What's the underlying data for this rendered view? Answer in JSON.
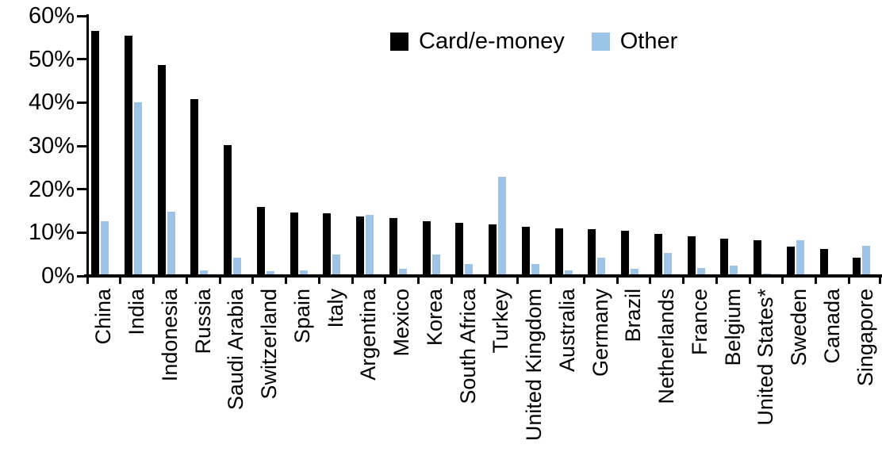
{
  "background_color": "#FFFFFF",
  "chart_data": {
    "type": "bar",
    "title": "",
    "xlabel": "",
    "ylabel": "",
    "ylim": [
      0,
      60
    ],
    "ytick_labels": [
      "0%",
      "10%",
      "20%",
      "30%",
      "40%",
      "50%",
      "60%"
    ],
    "grid": false,
    "legend_position": "top-center",
    "categories": [
      "China",
      "India",
      "Indonesia",
      "Russia",
      "Saudi Arabia",
      "Switzerland",
      "Spain",
      "Italy",
      "Argentina",
      "Mexico",
      "Korea",
      "South Africa",
      "Turkey",
      "United Kingdom",
      "Australia",
      "Germany",
      "Brazil",
      "Netherlands",
      "France",
      "Belgium",
      "United States*",
      "Sweden",
      "Canada",
      "Singapore"
    ],
    "series": [
      {
        "name": "Card/e-money",
        "color": "#000000",
        "values": [
          56.2,
          55.0,
          48.3,
          40.5,
          29.8,
          15.6,
          14.2,
          14.1,
          13.4,
          12.9,
          12.2,
          11.8,
          11.5,
          11.0,
          10.7,
          10.5,
          10.0,
          9.3,
          8.7,
          8.2,
          7.9,
          6.4,
          5.9,
          3.9
        ]
      },
      {
        "name": "Other",
        "color": "#9DC3E6",
        "values": [
          12.3,
          39.7,
          14.5,
          1.0,
          3.9,
          0.8,
          1.0,
          4.6,
          13.8,
          1.3,
          4.6,
          2.3,
          22.5,
          2.3,
          1.0,
          3.9,
          1.2,
          4.9,
          1.5,
          2.0,
          0.2,
          7.9,
          0.0,
          6.6
        ]
      }
    ]
  }
}
